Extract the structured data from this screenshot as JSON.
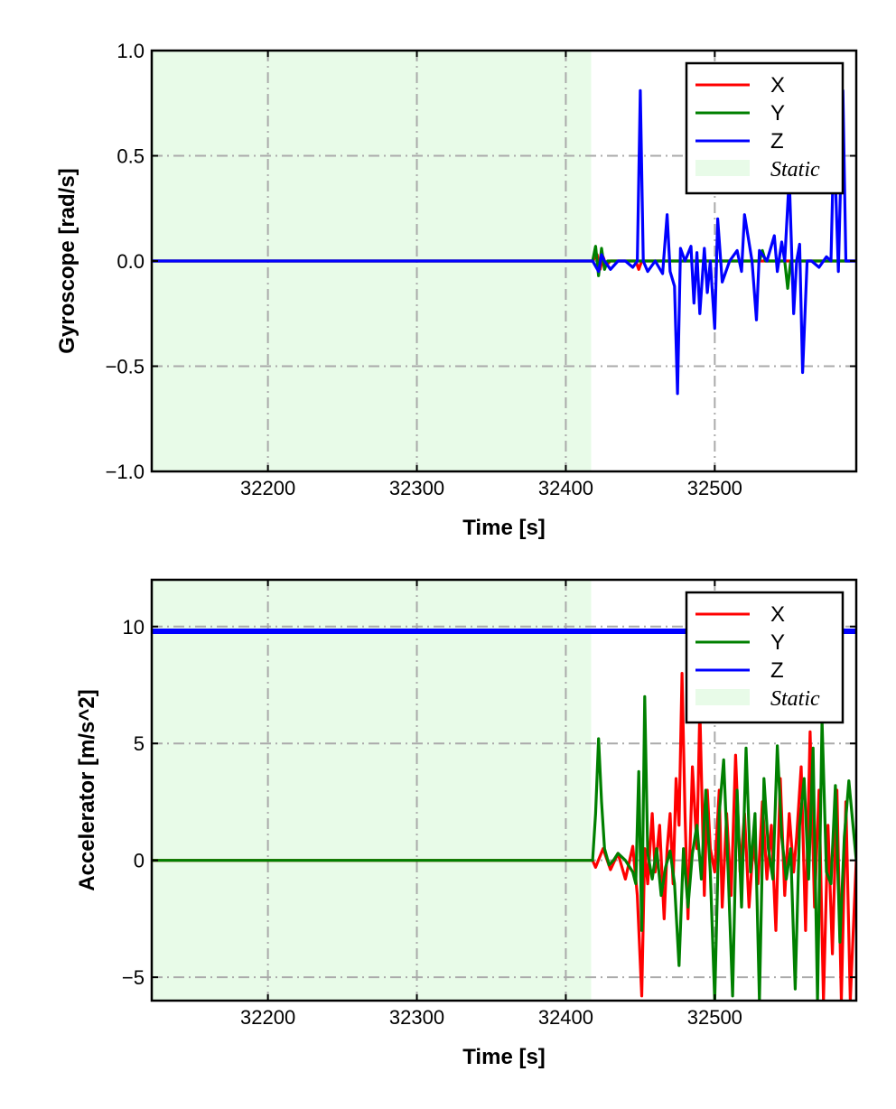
{
  "chart_data": [
    {
      "type": "line",
      "ylabel": "Gyroscope [rad/s]",
      "xlabel": "Time [s]",
      "xlim": [
        32122,
        32595
      ],
      "ylim": [
        -1.0,
        1.0
      ],
      "xticks": [
        32200,
        32300,
        32400,
        32500
      ],
      "yticks": [
        -1.0,
        -0.5,
        0.0,
        0.5,
        1.0
      ],
      "ytick_labels": [
        "−1.0",
        "−0.5",
        "0.0",
        "0.5",
        "1.0"
      ],
      "grid": true,
      "legend_position": "top-right",
      "static_span": [
        32122,
        32417
      ],
      "static_label": "Static",
      "series": [
        {
          "name": "X",
          "color": "#ff0000",
          "x": [
            32122,
            32418,
            32421,
            32423,
            32425,
            32427,
            32430,
            32440,
            32447,
            32449,
            32451,
            32460,
            32470,
            32480,
            32490,
            32500,
            32510,
            32520,
            32530,
            32540,
            32550,
            32560,
            32570,
            32580,
            32595
          ],
          "y": [
            0.0,
            0.0,
            0.03,
            -0.04,
            0.02,
            -0.02,
            0.0,
            0.0,
            0.0,
            -0.04,
            0.0,
            0.0,
            0.0,
            0.0,
            0.0,
            0.0,
            0.0,
            0.0,
            0.0,
            0.0,
            0.0,
            0.0,
            0.0,
            0.0,
            0.0
          ]
        },
        {
          "name": "Y",
          "color": "#008000",
          "x": [
            32122,
            32418,
            32420,
            32422,
            32424,
            32426,
            32428,
            32440,
            32500,
            32530,
            32532,
            32534,
            32540,
            32547,
            32549,
            32551,
            32560,
            32595
          ],
          "y": [
            0.0,
            0.0,
            0.07,
            -0.07,
            0.06,
            -0.04,
            0.0,
            0.0,
            0.0,
            0.0,
            0.05,
            0.0,
            0.0,
            0.0,
            -0.13,
            0.0,
            0.0,
            0.0
          ]
        },
        {
          "name": "Z",
          "color": "#0000ff",
          "x": [
            32122,
            32418,
            32422,
            32424,
            32426,
            32430,
            32435,
            32440,
            32445,
            32448,
            32450,
            32452,
            32455,
            32460,
            32465,
            32468,
            32470,
            32473,
            32475,
            32477,
            32480,
            32484,
            32486,
            32488,
            32490,
            32493,
            32495,
            32497,
            32500,
            32502,
            32505,
            32510,
            32515,
            32518,
            32520,
            32525,
            32528,
            32530,
            32535,
            32540,
            32542,
            32545,
            32547,
            32550,
            32553,
            32555,
            32557,
            32559,
            32562,
            32565,
            32570,
            32575,
            32578,
            32580,
            32583,
            32586,
            32588,
            32590,
            32595
          ],
          "y": [
            0.0,
            0.0,
            -0.05,
            0.03,
            0.0,
            -0.04,
            0.0,
            0.0,
            -0.03,
            0.0,
            0.81,
            0.0,
            -0.05,
            0.0,
            -0.06,
            0.22,
            -0.05,
            -0.12,
            -0.63,
            0.06,
            0.0,
            0.07,
            -0.2,
            0.04,
            -0.25,
            0.06,
            -0.15,
            0.0,
            -0.32,
            0.2,
            -0.1,
            0.0,
            0.05,
            -0.05,
            0.22,
            0.0,
            -0.28,
            0.05,
            0.0,
            0.12,
            -0.05,
            0.09,
            0.0,
            0.4,
            -0.25,
            0.0,
            0.08,
            -0.53,
            0.0,
            0.0,
            -0.03,
            0.02,
            0.0,
            0.6,
            -0.05,
            0.81,
            0.0,
            0.0,
            0.0
          ]
        }
      ]
    },
    {
      "type": "line",
      "ylabel": "Accelerator [m/s^2]",
      "xlabel": "Time [s]",
      "xlim": [
        32122,
        32595
      ],
      "ylim": [
        -6.0,
        12.0
      ],
      "xticks": [
        32200,
        32300,
        32400,
        32500
      ],
      "yticks": [
        -5,
        0,
        5,
        10
      ],
      "ytick_labels": [
        "−5",
        "0",
        "5",
        "10"
      ],
      "grid": true,
      "legend_position": "top-right",
      "static_span": [
        32122,
        32417
      ],
      "static_label": "Static",
      "series": [
        {
          "name": "X",
          "color": "#ff0000",
          "x": [
            32122,
            32418,
            32420,
            32425,
            32430,
            32435,
            32440,
            32445,
            32448,
            32451,
            32453,
            32455,
            32458,
            32460,
            32463,
            32466,
            32468,
            32470,
            32472,
            32474,
            32476,
            32478,
            32480,
            32482,
            32485,
            32488,
            32490,
            32493,
            32495,
            32497,
            32500,
            32503,
            32505,
            32508,
            32511,
            32514,
            32517,
            32520,
            32523,
            32526,
            32529,
            32532,
            32535,
            32538,
            32541,
            32544,
            32547,
            32550,
            32553,
            32555,
            32558,
            32561,
            32564,
            32567,
            32570,
            32573,
            32576,
            32579,
            32582,
            32585,
            32588,
            32591,
            32595
          ],
          "y": [
            0.0,
            0.0,
            -0.3,
            0.5,
            -0.4,
            0.3,
            -0.8,
            0.6,
            -1.5,
            -5.8,
            0.5,
            -1.0,
            2.0,
            -0.5,
            1.5,
            -2.5,
            0.5,
            2.0,
            -1.0,
            3.5,
            1.5,
            8.0,
            2.0,
            -2.5,
            4.0,
            0.5,
            6.5,
            -1.5,
            3.0,
            0.5,
            -0.5,
            3.0,
            -2.0,
            2.0,
            -1.5,
            4.5,
            -0.5,
            2.0,
            -2.0,
            0.8,
            -1.0,
            2.5,
            -0.8,
            1.5,
            -3.0,
            3.5,
            -1.5,
            2.0,
            -0.5,
            1.0,
            4.0,
            -3.0,
            5.5,
            -2.0,
            3.0,
            -6.0,
            1.5,
            -4.0,
            3.0,
            -6.0,
            2.5,
            -6.0,
            0.0
          ]
        },
        {
          "name": "Y",
          "color": "#008000",
          "x": [
            32122,
            32418,
            32420,
            32422,
            32424,
            32426,
            32429,
            32432,
            32435,
            32440,
            32445,
            32447,
            32449,
            32451,
            32453,
            32455,
            32458,
            32461,
            32464,
            32467,
            32470,
            32473,
            32476,
            32479,
            32482,
            32485,
            32488,
            32491,
            32494,
            32497,
            32500,
            32503,
            32506,
            32509,
            32512,
            32515,
            32518,
            32521,
            32524,
            32527,
            32530,
            32533,
            32536,
            32539,
            32542,
            32545,
            32548,
            32551,
            32554,
            32557,
            32560,
            32563,
            32566,
            32569,
            32572,
            32575,
            32578,
            32581,
            32584,
            32587,
            32590,
            32595
          ],
          "y": [
            0.0,
            0.0,
            2.0,
            5.2,
            2.5,
            0.5,
            -0.2,
            0.0,
            0.3,
            0.0,
            -0.5,
            -1.0,
            3.8,
            -3.0,
            7.0,
            0.3,
            -0.8,
            0.5,
            -1.5,
            -0.3,
            0.4,
            -1.0,
            -4.5,
            0.5,
            -2.0,
            0.3,
            1.5,
            -0.8,
            3.0,
            -0.5,
            -6.0,
            2.0,
            4.3,
            -0.5,
            -5.8,
            3.0,
            -2.0,
            4.8,
            -0.5,
            2.0,
            -6.0,
            3.5,
            0.5,
            -0.8,
            4.9,
            1.0,
            -0.8,
            0.5,
            -5.5,
            1.5,
            3.5,
            -0.8,
            4.8,
            -6.0,
            6.0,
            -0.5,
            -1.0,
            3.2,
            -3.5,
            1.0,
            3.4,
            0.0
          ]
        },
        {
          "name": "Z",
          "color": "#0000ff",
          "x": [
            32122,
            32595
          ],
          "y": [
            9.8,
            9.8
          ]
        }
      ]
    }
  ]
}
